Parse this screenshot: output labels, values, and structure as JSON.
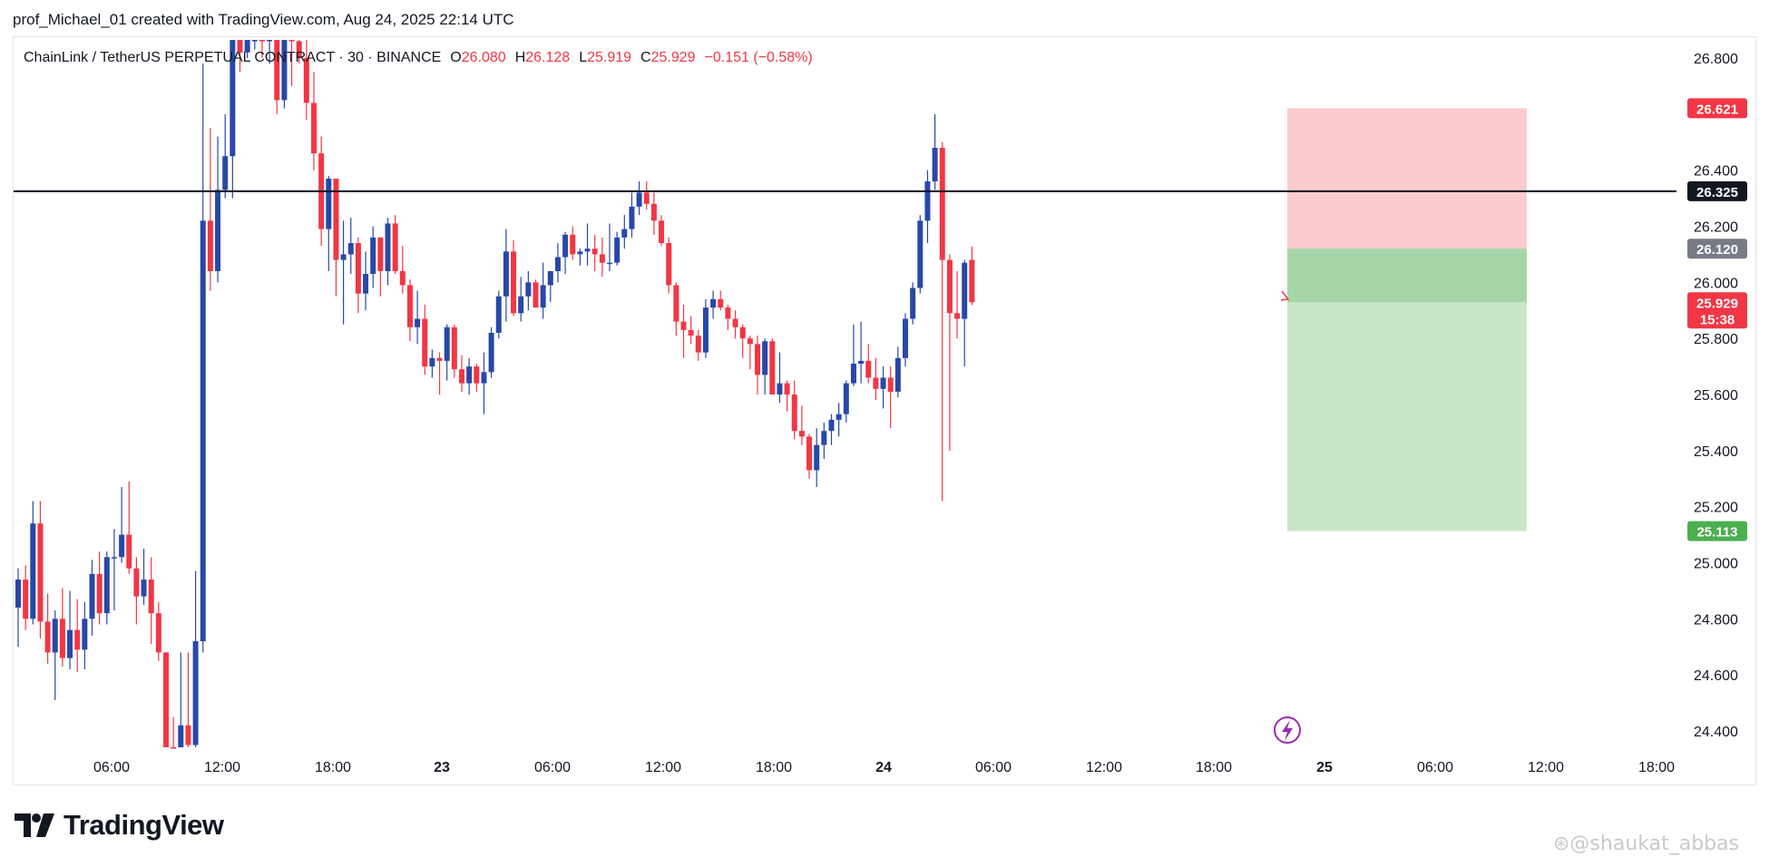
{
  "header": {
    "text": "prof_Michael_01 created with TradingView.com, Aug 24, 2025 22:14 UTC"
  },
  "legend": {
    "symbol": "ChainLink / TetherUS PERPETUAL CONTRACT · 30 · BINANCE",
    "o_label": "O",
    "o_value": "26.080",
    "h_label": "H",
    "h_value": "26.128",
    "l_label": "L",
    "l_value": "25.919",
    "c_label": "C",
    "c_value": "25.929",
    "change": "−0.151 (−0.58%)"
  },
  "colors": {
    "up": "#2848a8",
    "down": "#f23645",
    "axis_text": "#131722",
    "stop_zone": "#fccbcd",
    "target_zone": "#c8e6c9",
    "entry_zone": "#a5d6a7"
  },
  "chart_data": {
    "type": "candlestick",
    "title": "ChainLink / TetherUS PERPETUAL CONTRACT · 30 · BINANCE",
    "interval": "30",
    "y_axis": {
      "min": 24.3,
      "max": 26.95,
      "ticks": [
        "26.800",
        "26.400",
        "26.200",
        "26.000",
        "25.800",
        "25.600",
        "25.400",
        "25.200",
        "25.000",
        "24.800",
        "24.600",
        "24.400"
      ]
    },
    "x_axis": {
      "tick_labels": [
        "06:00",
        "12:00",
        "18:00",
        "23",
        "06:00",
        "12:00",
        "18:00",
        "24",
        "06:00",
        "12:00",
        "18:00",
        "25",
        "06:00",
        "12:00",
        "18:00"
      ]
    },
    "horizontal_line": {
      "price": 26.325,
      "label": "26.325"
    },
    "position": {
      "stop_price": 26.621,
      "stop_label": "26.621",
      "entry_price": 26.12,
      "entry_label": "26.120",
      "target_price": 25.113,
      "target_label": "25.113"
    },
    "last_price": {
      "value": "25.929",
      "countdown": "15:38"
    },
    "candles_ohlc": [
      [
        24.84,
        24.98,
        24.7,
        24.94
      ],
      [
        24.94,
        24.99,
        24.76,
        24.8
      ],
      [
        24.8,
        25.22,
        24.78,
        25.14
      ],
      [
        25.14,
        25.22,
        24.73,
        24.79
      ],
      [
        24.79,
        24.89,
        24.64,
        24.68
      ],
      [
        24.68,
        24.83,
        24.51,
        24.8
      ],
      [
        24.8,
        24.91,
        24.63,
        24.66
      ],
      [
        24.66,
        24.9,
        24.62,
        24.76
      ],
      [
        24.76,
        24.87,
        24.61,
        24.69
      ],
      [
        24.69,
        24.86,
        24.62,
        24.8
      ],
      [
        24.8,
        25.01,
        24.74,
        24.96
      ],
      [
        24.96,
        25.04,
        24.78,
        24.82
      ],
      [
        24.82,
        25.04,
        24.78,
        25.02
      ],
      [
        25.02,
        25.12,
        24.83,
        25.02
      ],
      [
        25.02,
        25.27,
        25.0,
        25.1
      ],
      [
        25.1,
        25.29,
        24.96,
        24.98
      ],
      [
        24.98,
        25.02,
        24.78,
        24.88
      ],
      [
        24.88,
        25.05,
        24.85,
        24.94
      ],
      [
        24.94,
        25.02,
        24.71,
        24.82
      ],
      [
        24.82,
        24.86,
        24.65,
        24.68
      ],
      [
        24.68,
        24.68,
        24.31,
        24.33
      ],
      [
        24.33,
        24.45,
        24.25,
        24.28
      ],
      [
        24.28,
        24.68,
        24.25,
        24.42
      ],
      [
        24.42,
        24.68,
        24.33,
        24.35
      ],
      [
        24.35,
        24.97,
        24.34,
        24.72
      ],
      [
        24.72,
        26.78,
        24.68,
        26.22
      ],
      [
        26.22,
        26.55,
        25.97,
        26.04
      ],
      [
        26.04,
        26.52,
        26.0,
        26.33
      ],
      [
        26.33,
        26.6,
        26.3,
        26.45
      ],
      [
        26.45,
        27.0,
        26.3,
        27.0
      ],
      [
        26.88,
        26.92,
        26.75,
        26.82
      ],
      [
        26.82,
        26.95,
        26.8,
        26.88
      ],
      [
        26.88,
        26.94,
        26.83,
        26.9
      ],
      [
        26.9,
        26.94,
        26.8,
        26.86
      ],
      [
        26.86,
        26.95,
        26.78,
        26.92
      ],
      [
        26.92,
        26.98,
        26.6,
        26.65
      ],
      [
        26.65,
        26.95,
        26.62,
        26.88
      ],
      [
        26.88,
        26.95,
        26.7,
        26.86
      ],
      [
        26.86,
        26.92,
        26.78,
        26.8
      ],
      [
        26.8,
        26.92,
        26.58,
        26.64
      ],
      [
        26.64,
        26.75,
        26.4,
        26.46
      ],
      [
        26.46,
        26.52,
        26.13,
        26.19
      ],
      [
        26.19,
        26.38,
        26.04,
        26.37
      ],
      [
        26.37,
        26.37,
        25.95,
        26.08
      ],
      [
        26.08,
        26.22,
        25.85,
        26.1
      ],
      [
        26.1,
        26.23,
        26.03,
        26.14
      ],
      [
        26.14,
        26.16,
        25.89,
        25.96
      ],
      [
        25.96,
        26.11,
        25.9,
        26.03
      ],
      [
        26.03,
        26.2,
        25.98,
        26.16
      ],
      [
        26.16,
        26.16,
        25.95,
        26.04
      ],
      [
        26.04,
        26.23,
        25.99,
        26.21
      ],
      [
        26.21,
        26.24,
        26.03,
        26.04
      ],
      [
        26.04,
        26.13,
        25.96,
        25.99
      ],
      [
        25.99,
        26.01,
        25.79,
        25.84
      ],
      [
        25.84,
        25.97,
        25.78,
        25.87
      ],
      [
        25.87,
        25.92,
        25.67,
        25.7
      ],
      [
        25.7,
        25.76,
        25.66,
        25.73
      ],
      [
        25.73,
        25.75,
        25.6,
        25.72
      ],
      [
        25.72,
        25.85,
        25.65,
        25.84
      ],
      [
        25.84,
        25.85,
        25.66,
        25.69
      ],
      [
        25.69,
        25.74,
        25.61,
        25.64
      ],
      [
        25.64,
        25.73,
        25.6,
        25.7
      ],
      [
        25.7,
        25.71,
        25.61,
        25.64
      ],
      [
        25.64,
        25.75,
        25.53,
        25.68
      ],
      [
        25.68,
        25.84,
        25.66,
        25.82
      ],
      [
        25.82,
        25.97,
        25.8,
        25.95
      ],
      [
        25.95,
        26.19,
        25.86,
        26.11
      ],
      [
        26.11,
        26.15,
        25.88,
        25.89
      ],
      [
        25.89,
        26.02,
        25.86,
        25.95
      ],
      [
        25.95,
        26.04,
        25.9,
        26.0
      ],
      [
        26.0,
        26.01,
        25.91,
        25.91
      ],
      [
        25.91,
        26.07,
        25.87,
        25.99
      ],
      [
        25.99,
        26.04,
        25.93,
        26.04
      ],
      [
        26.04,
        26.14,
        26.0,
        26.09
      ],
      [
        26.09,
        26.18,
        26.03,
        26.17
      ],
      [
        26.17,
        26.2,
        26.08,
        26.1
      ],
      [
        26.1,
        26.12,
        26.06,
        26.11
      ],
      [
        26.11,
        26.21,
        26.06,
        26.12
      ],
      [
        26.12,
        26.17,
        26.04,
        26.1
      ],
      [
        26.1,
        26.16,
        26.02,
        26.07
      ],
      [
        26.07,
        26.21,
        26.04,
        26.07
      ],
      [
        26.07,
        26.18,
        26.06,
        26.16
      ],
      [
        26.16,
        26.24,
        26.12,
        26.19
      ],
      [
        26.19,
        26.32,
        26.16,
        26.27
      ],
      [
        26.27,
        26.36,
        26.24,
        26.32
      ],
      [
        26.32,
        26.36,
        26.26,
        26.28
      ],
      [
        26.28,
        26.32,
        26.17,
        26.22
      ],
      [
        26.22,
        26.24,
        26.13,
        26.14
      ],
      [
        26.14,
        26.16,
        25.96,
        25.99
      ],
      [
        25.99,
        26.0,
        25.81,
        25.86
      ],
      [
        25.86,
        25.92,
        25.73,
        25.83
      ],
      [
        25.83,
        25.88,
        25.78,
        25.81
      ],
      [
        25.81,
        25.83,
        25.72,
        25.75
      ],
      [
        25.75,
        25.94,
        25.73,
        25.91
      ],
      [
        25.91,
        25.97,
        25.87,
        25.94
      ],
      [
        25.94,
        25.97,
        25.9,
        25.91
      ],
      [
        25.91,
        25.92,
        25.83,
        25.87
      ],
      [
        25.87,
        25.9,
        25.8,
        25.84
      ],
      [
        25.84,
        25.85,
        25.73,
        25.8
      ],
      [
        25.8,
        25.81,
        25.69,
        25.78
      ],
      [
        25.78,
        25.81,
        25.6,
        25.67
      ],
      [
        25.67,
        25.8,
        25.6,
        25.79
      ],
      [
        25.79,
        25.8,
        25.63,
        25.6
      ],
      [
        25.6,
        25.75,
        25.57,
        25.64
      ],
      [
        25.64,
        25.65,
        25.54,
        25.6
      ],
      [
        25.6,
        25.65,
        25.44,
        25.47
      ],
      [
        25.47,
        25.56,
        25.42,
        25.45
      ],
      [
        25.45,
        25.46,
        25.3,
        25.33
      ],
      [
        25.33,
        25.48,
        25.27,
        25.42
      ],
      [
        25.42,
        25.5,
        25.37,
        25.47
      ],
      [
        25.47,
        25.53,
        25.42,
        25.51
      ],
      [
        25.51,
        25.57,
        25.45,
        25.53
      ],
      [
        25.53,
        25.65,
        25.5,
        25.64
      ],
      [
        25.64,
        25.85,
        25.63,
        25.71
      ],
      [
        25.71,
        25.86,
        25.64,
        25.72
      ],
      [
        25.72,
        25.78,
        25.64,
        25.66
      ],
      [
        25.66,
        25.73,
        25.58,
        25.62
      ],
      [
        25.62,
        25.7,
        25.55,
        25.66
      ],
      [
        25.66,
        25.7,
        25.48,
        25.61
      ],
      [
        25.61,
        25.77,
        25.59,
        25.73
      ],
      [
        25.73,
        25.89,
        25.7,
        25.87
      ],
      [
        25.87,
        26.0,
        25.85,
        25.98
      ],
      [
        25.98,
        26.24,
        25.96,
        26.22
      ],
      [
        26.22,
        26.4,
        26.14,
        26.36
      ],
      [
        26.36,
        26.6,
        26.33,
        26.48
      ],
      [
        26.48,
        26.5,
        25.22,
        26.08
      ],
      [
        26.08,
        26.1,
        25.4,
        25.89
      ],
      [
        25.89,
        26.04,
        25.8,
        25.87
      ],
      [
        25.87,
        26.08,
        25.7,
        26.07
      ],
      [
        26.08,
        26.128,
        25.919,
        25.929
      ]
    ]
  },
  "branding": {
    "logo_text": "TradingView",
    "logo_icon": "tradingview-logo-icon"
  },
  "watermark": {
    "text": "⊛@shaukat_abbas"
  }
}
